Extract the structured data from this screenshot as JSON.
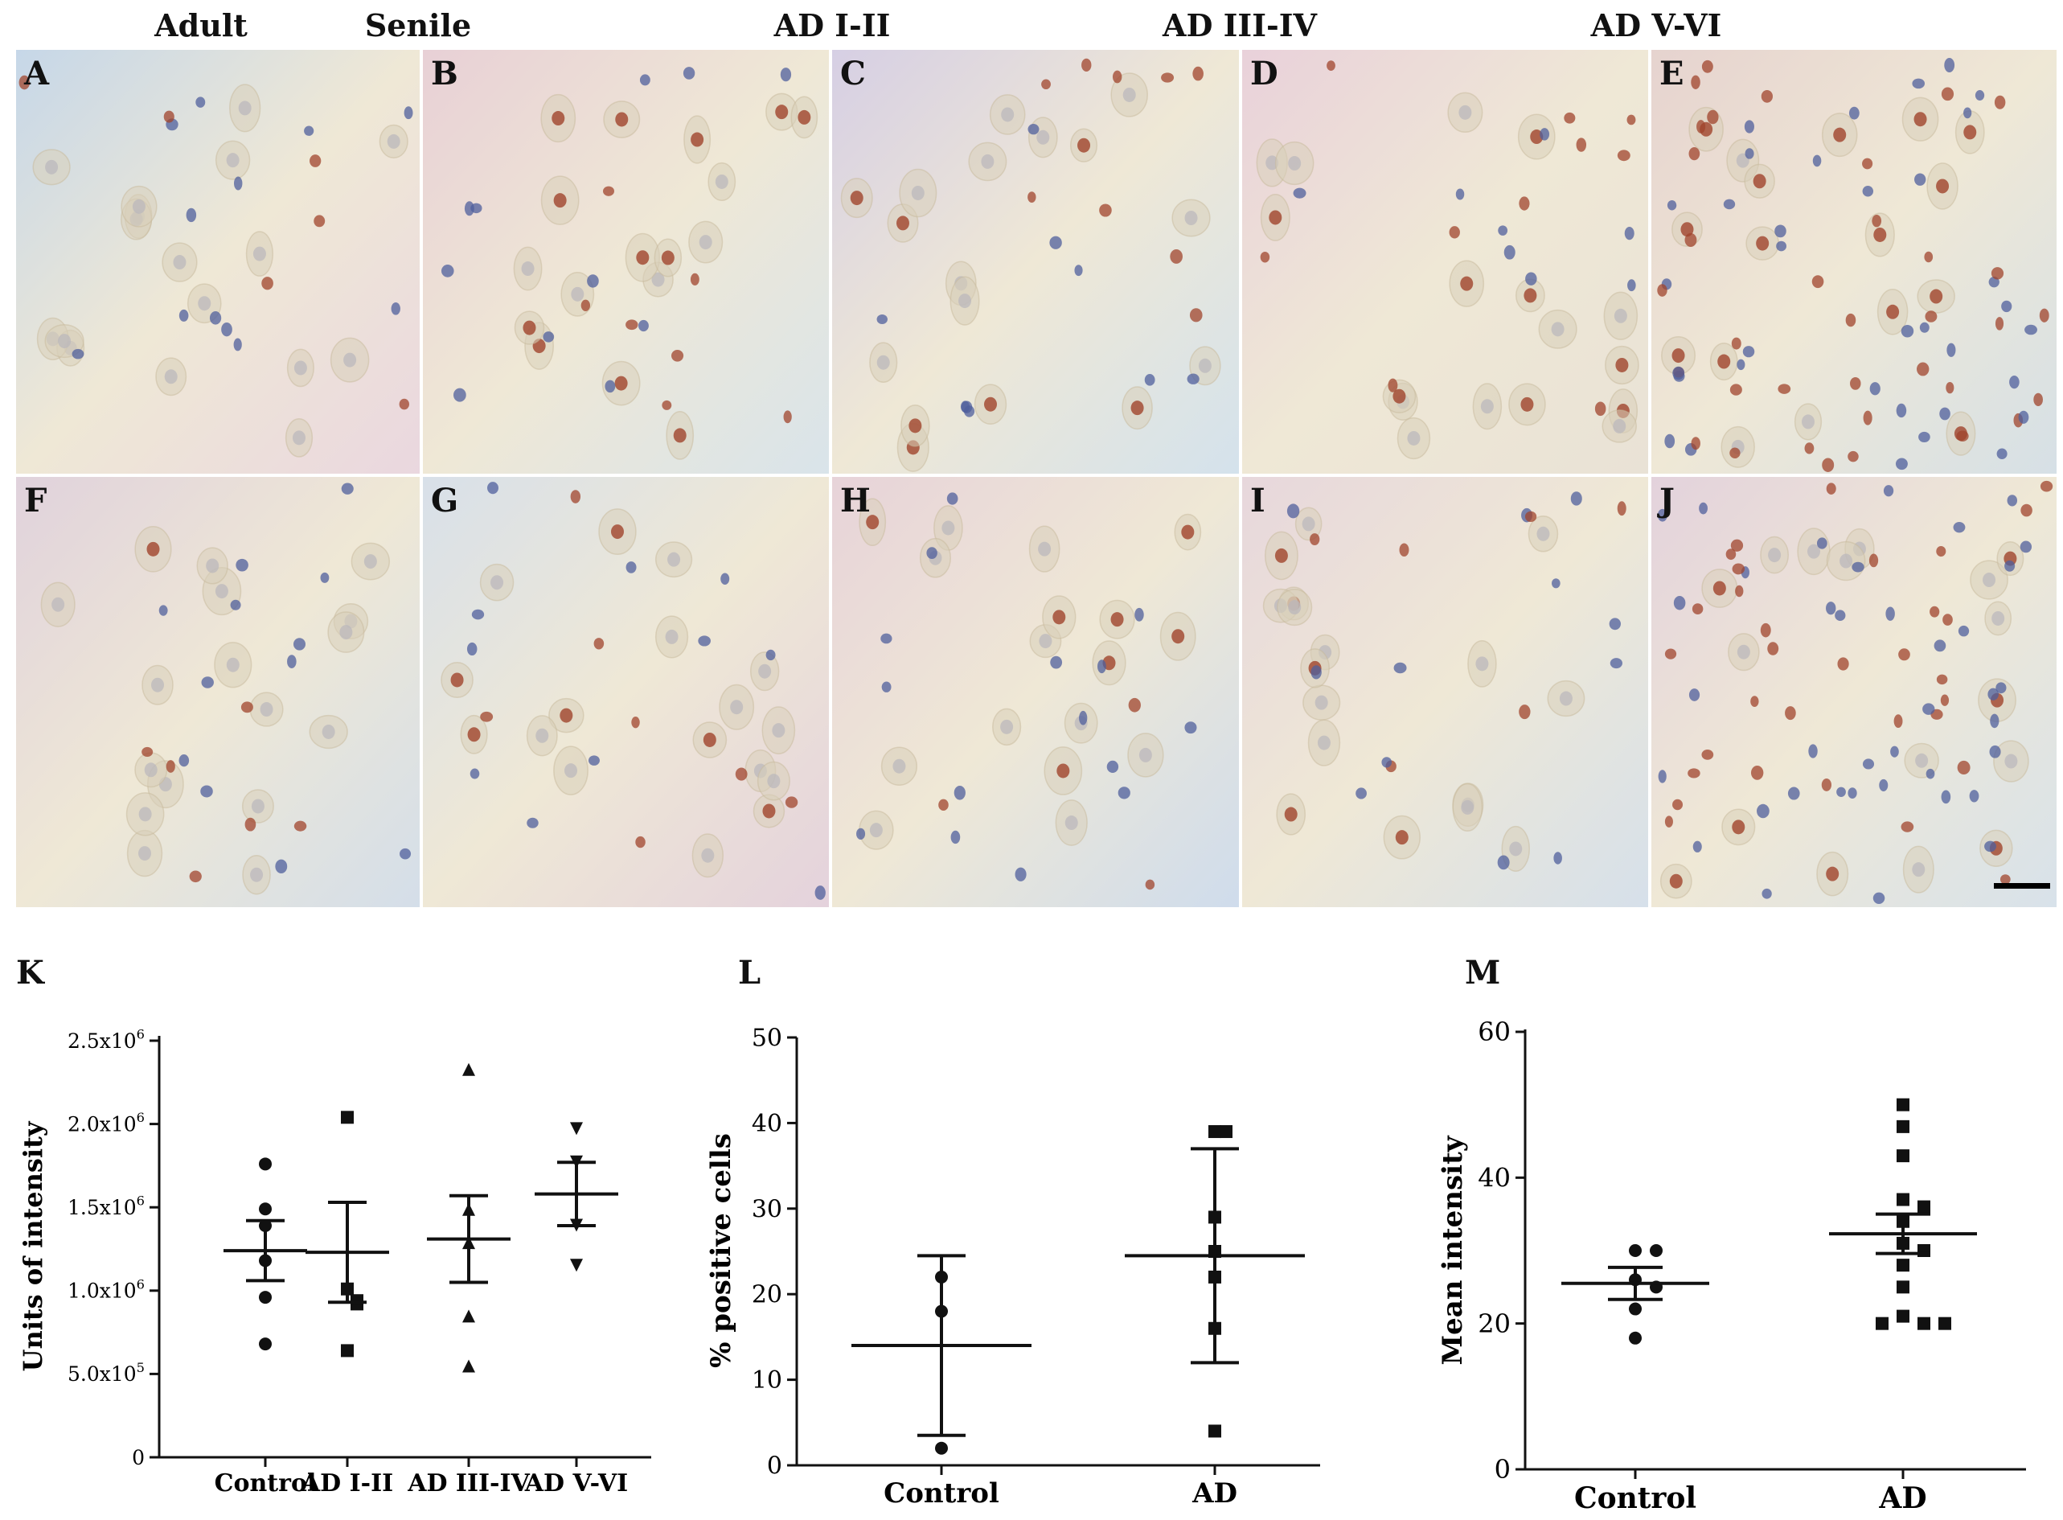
{
  "column_titles": [
    "Adult",
    "Senile",
    "AD I-II",
    "AD III-IV",
    "AD V-VI"
  ],
  "micrograph_labels": [
    "A",
    "B",
    "C",
    "D",
    "E",
    "F",
    "G",
    "H",
    "I",
    "J"
  ],
  "chart_data": [
    {
      "panel": "K",
      "type": "scatter",
      "title": "",
      "xlabel": "",
      "ylabel": "Units of intensity",
      "categories": [
        "Control",
        "AD I-II",
        "AD III-IV",
        "AD V-VI"
      ],
      "markers": [
        "circle",
        "square",
        "triangle-up",
        "triangle-down"
      ],
      "ylim": [
        0,
        2500000
      ],
      "yticks": [
        {
          "value": 0,
          "label": "0"
        },
        {
          "value": 500000,
          "label": "5.0x10",
          "exp": "5"
        },
        {
          "value": 1000000,
          "label": "1.0x10",
          "exp": "6"
        },
        {
          "value": 1500000,
          "label": "1.5x10",
          "exp": "6"
        },
        {
          "value": 2000000,
          "label": "2.0x10",
          "exp": "6"
        },
        {
          "value": 2500000,
          "label": "2.5x10",
          "exp": "6"
        }
      ],
      "points": [
        [
          1760000,
          1490000,
          1390000,
          1180000,
          960000,
          680000
        ],
        [
          2040000,
          1010000,
          940000,
          920000,
          640000
        ],
        [
          2320000,
          1480000,
          1280000,
          840000,
          540000
        ],
        [
          1980000,
          1780000,
          1400000,
          1160000
        ]
      ],
      "mean": [
        1240000,
        1230000,
        1310000,
        1580000
      ],
      "sem": [
        180000,
        300000,
        260000,
        190000
      ]
    },
    {
      "panel": "L",
      "type": "scatter",
      "title": "",
      "xlabel": "",
      "ylabel": "% positive cells",
      "categories": [
        "Control",
        "AD"
      ],
      "markers": [
        "circle",
        "square"
      ],
      "ylim": [
        0,
        50
      ],
      "yticks": [
        {
          "value": 0,
          "label": "0"
        },
        {
          "value": 10,
          "label": "10"
        },
        {
          "value": 20,
          "label": "20"
        },
        {
          "value": 30,
          "label": "30"
        },
        {
          "value": 40,
          "label": "40"
        },
        {
          "value": 50,
          "label": "50"
        }
      ],
      "points": [
        [
          22,
          18,
          2
        ],
        [
          39,
          39,
          29,
          25,
          22,
          16,
          4
        ]
      ],
      "mean": [
        14,
        24.5
      ],
      "sem": [
        10.5,
        12.5
      ]
    },
    {
      "panel": "M",
      "type": "scatter",
      "title": "",
      "xlabel": "",
      "ylabel": "Mean intensity",
      "categories": [
        "Control",
        "AD"
      ],
      "markers": [
        "circle",
        "square"
      ],
      "ylim": [
        0,
        60
      ],
      "yticks": [
        {
          "value": 0,
          "label": "0"
        },
        {
          "value": 20,
          "label": "20"
        },
        {
          "value": 40,
          "label": "40"
        },
        {
          "value": 60,
          "label": "60"
        }
      ],
      "points": [
        [
          30,
          30,
          26,
          25,
          22,
          18
        ],
        [
          50,
          47,
          43,
          37,
          36,
          34,
          31,
          30,
          28,
          25,
          21,
          20,
          20,
          20
        ]
      ],
      "mean": [
        25.5,
        32.3
      ],
      "sem": [
        2.2,
        2.7
      ]
    }
  ],
  "colors": {
    "background": "#ffffff",
    "tissue": "#efe8d6",
    "neuron_halo": "#d9cfba",
    "nucleus_blue": "#4f5f9c",
    "nucleus_brown": "#a0442c",
    "ink": "#111111"
  }
}
